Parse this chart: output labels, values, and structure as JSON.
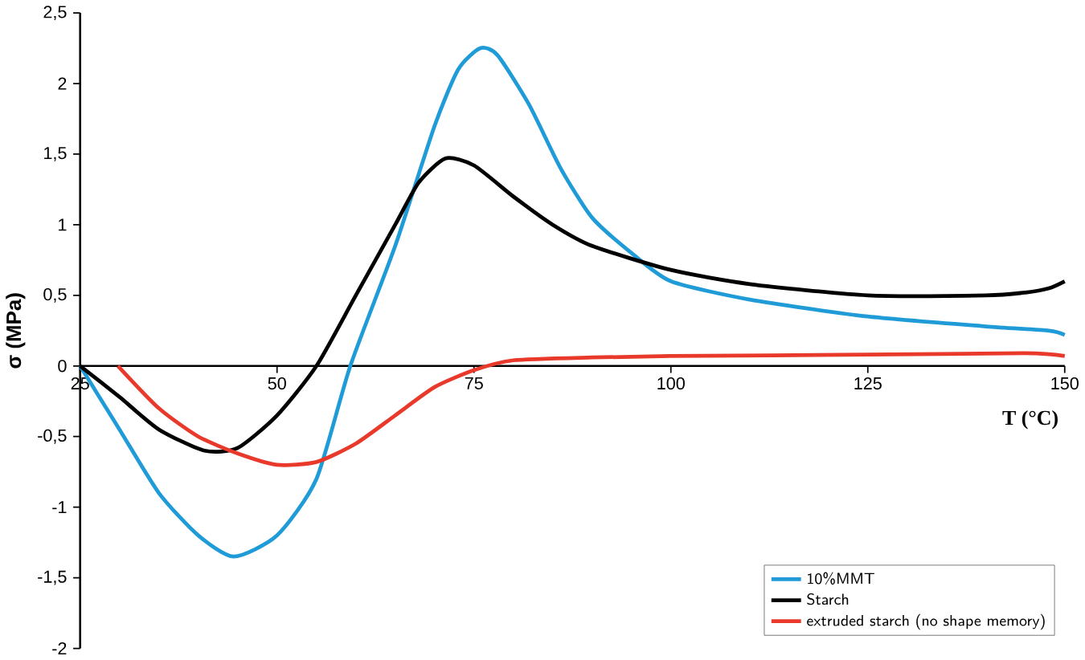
{
  "chart_data": {
    "type": "line",
    "xlabel": "T (°C)",
    "ylabel": "σ (MPa)",
    "xlim": [
      25,
      150
    ],
    "ylim": [
      -2,
      2.5
    ],
    "xticks": [
      25,
      50,
      75,
      100,
      125,
      150
    ],
    "yticks": [
      {
        "value": -2,
        "label": "-2"
      },
      {
        "value": -1.5,
        "label": "-1,5"
      },
      {
        "value": -1,
        "label": "-1"
      },
      {
        "value": -0.5,
        "label": "-0,5"
      },
      {
        "value": 0,
        "label": "0"
      },
      {
        "value": 0.5,
        "label": "0,5"
      },
      {
        "value": 1,
        "label": "1"
      },
      {
        "value": 1.5,
        "label": "1,5"
      },
      {
        "value": 2,
        "label": "2"
      },
      {
        "value": 2.5,
        "label": "2,5"
      }
    ],
    "series": [
      {
        "name": "10%MMT",
        "color": "#1f9bd7",
        "x": [
          25,
          30,
          35,
          40,
          44.5,
          50,
          55,
          59.3,
          65,
          70,
          73,
          75.8,
          78,
          82,
          86,
          90,
          95,
          100,
          110,
          125,
          140,
          148,
          150
        ],
        "values": [
          0,
          -0.45,
          -0.9,
          -1.2,
          -1.35,
          -1.2,
          -0.8,
          0,
          0.85,
          1.7,
          2.1,
          2.25,
          2.2,
          1.85,
          1.4,
          1.05,
          0.8,
          0.6,
          0.47,
          0.35,
          0.28,
          0.25,
          0.22
        ]
      },
      {
        "name": "Starch",
        "color": "#000000",
        "x": [
          25,
          30,
          35,
          40.8,
          45,
          50,
          55,
          60,
          65,
          68,
          71.4,
          75,
          80,
          85,
          90,
          100,
          110,
          125,
          140,
          145,
          148,
          150
        ],
        "values": [
          0,
          -0.22,
          -0.45,
          -0.6,
          -0.58,
          -0.35,
          0,
          0.5,
          1.0,
          1.3,
          1.47,
          1.42,
          1.2,
          1.0,
          0.85,
          0.68,
          0.58,
          0.5,
          0.5,
          0.52,
          0.55,
          0.6
        ]
      },
      {
        "name": "extruded starch (no shape memory)",
        "color": "#e8392b",
        "x": [
          29.8,
          35,
          40,
          45,
          50,
          55,
          60,
          65,
          70,
          75,
          80,
          90,
          100,
          125,
          145,
          150
        ],
        "values": [
          0,
          -0.3,
          -0.5,
          -0.62,
          -0.7,
          -0.68,
          -0.55,
          -0.35,
          -0.15,
          -0.03,
          0.04,
          0.06,
          0.07,
          0.08,
          0.09,
          0.07
        ]
      }
    ],
    "legend": "bottom right",
    "grid": false,
    "marker": "none",
    "line_style": "solid"
  }
}
